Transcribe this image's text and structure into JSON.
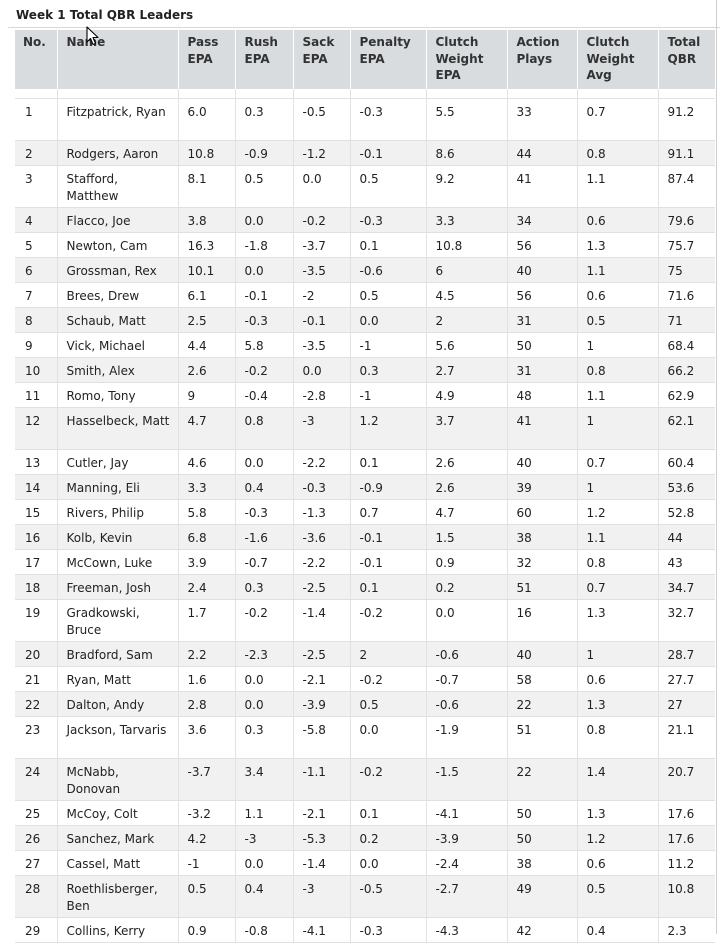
{
  "title": "Week 1 Total QBR Leaders",
  "columns": [
    "No.",
    "Name",
    "Pass EPA",
    "Rush EPA",
    "Sack EPA",
    "Penalty EPA",
    "Clutch Weight EPA",
    "Action Plays",
    "Clutch Weight Avg",
    "Total QBR"
  ],
  "rows": [
    [
      "1",
      "Fitzpatrick, Ryan",
      "6.0",
      "0.3",
      "-0.5",
      "-0.3",
      "5.5",
      "33",
      "0.7",
      "91.2"
    ],
    [
      "2",
      "Rodgers, Aaron",
      "10.8",
      "-0.9",
      "-1.2",
      "-0.1",
      "8.6",
      "44",
      "0.8",
      "91.1"
    ],
    [
      "3",
      "Stafford, Matthew",
      "8.1",
      "0.5",
      "0.0",
      "0.5",
      "9.2",
      "41",
      "1.1",
      "87.4"
    ],
    [
      "4",
      "Flacco, Joe",
      "3.8",
      "0.0",
      "-0.2",
      "-0.3",
      "3.3",
      "34",
      "0.6",
      "79.6"
    ],
    [
      "5",
      "Newton, Cam",
      "16.3",
      "-1.8",
      "-3.7",
      "0.1",
      "10.8",
      "56",
      "1.3",
      "75.7"
    ],
    [
      "6",
      "Grossman, Rex",
      "10.1",
      "0.0",
      "-3.5",
      "-0.6",
      "6",
      "40",
      "1.1",
      "75"
    ],
    [
      "7",
      "Brees, Drew",
      "6.1",
      "-0.1",
      "-2",
      "0.5",
      "4.5",
      "56",
      "0.6",
      "71.6"
    ],
    [
      "8",
      "Schaub, Matt",
      "2.5",
      "-0.3",
      "-0.1",
      "0.0",
      "2",
      "31",
      "0.5",
      "71"
    ],
    [
      "9",
      "Vick, Michael",
      "4.4",
      "5.8",
      "-3.5",
      "-1",
      "5.6",
      "50",
      "1",
      "68.4"
    ],
    [
      "10",
      "Smith, Alex",
      "2.6",
      "-0.2",
      "0.0",
      "0.3",
      "2.7",
      "31",
      "0.8",
      "66.2"
    ],
    [
      "11",
      "Romo, Tony",
      "9",
      "-0.4",
      "-2.8",
      "-1",
      "4.9",
      "48",
      "1.1",
      "62.9"
    ],
    [
      "12",
      "Hasselbeck, Matt",
      "4.7",
      "0.8",
      "-3",
      "1.2",
      "3.7",
      "41",
      "1",
      "62.1"
    ],
    [
      "13",
      "Cutler, Jay",
      "4.6",
      "0.0",
      "-2.2",
      "0.1",
      "2.6",
      "40",
      "0.7",
      "60.4"
    ],
    [
      "14",
      "Manning, Eli",
      "3.3",
      "0.4",
      "-0.3",
      "-0.9",
      "2.6",
      "39",
      "1",
      "53.6"
    ],
    [
      "15",
      "Rivers, Philip",
      "5.8",
      "-0.3",
      "-1.3",
      "0.7",
      "4.7",
      "60",
      "1.2",
      "52.8"
    ],
    [
      "16",
      "Kolb, Kevin",
      "6.8",
      "-1.6",
      "-3.6",
      "-0.1",
      "1.5",
      "38",
      "1.1",
      "44"
    ],
    [
      "17",
      "McCown, Luke",
      "3.9",
      "-0.7",
      "-2.2",
      "-0.1",
      "0.9",
      "32",
      "0.8",
      "43"
    ],
    [
      "18",
      "Freeman, Josh",
      "2.4",
      "0.3",
      "-2.5",
      "0.1",
      "0.2",
      "51",
      "0.7",
      "34.7"
    ],
    [
      "19",
      "Gradkowski, Bruce",
      "1.7",
      "-0.2",
      "-1.4",
      "-0.2",
      "0.0",
      "16",
      "1.3",
      "32.7"
    ],
    [
      "20",
      "Bradford, Sam",
      "2.2",
      "-2.3",
      "-2.5",
      "2",
      "-0.6",
      "40",
      "1",
      "28.7"
    ],
    [
      "21",
      "Ryan, Matt",
      "1.6",
      "0.0",
      "-2.1",
      "-0.2",
      "-0.7",
      "58",
      "0.6",
      "27.7"
    ],
    [
      "22",
      "Dalton, Andy",
      "2.8",
      "0.0",
      "-3.9",
      "0.5",
      "-0.6",
      "22",
      "1.3",
      "27"
    ],
    [
      "23",
      "Jackson, Tarvaris",
      "3.6",
      "0.3",
      "-5.8",
      "0.0",
      "-1.9",
      "51",
      "0.8",
      "21.1"
    ],
    [
      "24",
      "McNabb, Donovan",
      "-3.7",
      "3.4",
      "-1.1",
      "-0.2",
      "-1.5",
      "22",
      "1.4",
      "20.7"
    ],
    [
      "25",
      "McCoy, Colt",
      "-3.2",
      "1.1",
      "-2.1",
      "0.1",
      "-4.1",
      "50",
      "1.3",
      "17.6"
    ],
    [
      "26",
      "Sanchez, Mark",
      "4.2",
      "-3",
      "-5.3",
      "0.2",
      "-3.9",
      "50",
      "1.2",
      "17.6"
    ],
    [
      "27",
      "Cassel, Matt",
      "-1",
      "0.0",
      "-1.4",
      "0.0",
      "-2.4",
      "38",
      "0.6",
      "11.2"
    ],
    [
      "28",
      "Roethlisberger, Ben",
      "0.5",
      "0.4",
      "-3",
      "-0.5",
      "-2.7",
      "49",
      "0.5",
      "10.8"
    ],
    [
      "29",
      "Collins, Kerry",
      "0.9",
      "-0.8",
      "-4.1",
      "-0.3",
      "-4.3",
      "42",
      "0.4",
      "2.3"
    ]
  ]
}
